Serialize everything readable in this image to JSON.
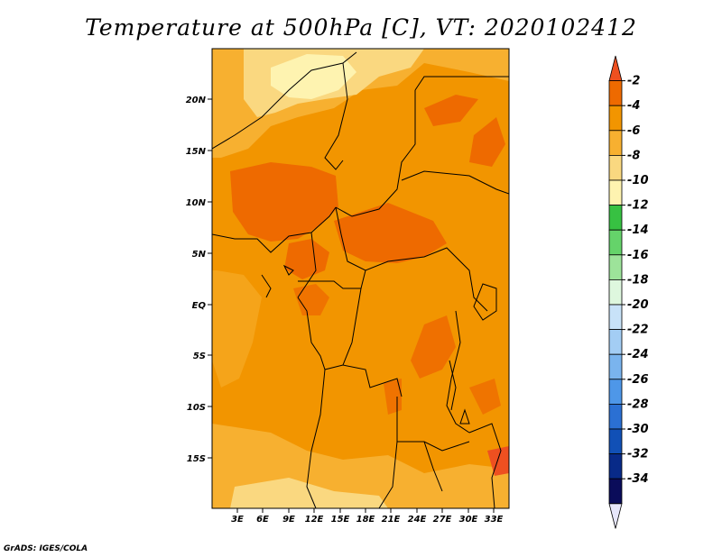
{
  "title": "Temperature at 500hPa [C], VT: 2020102412",
  "footer": "GrADS: IGES/COLA",
  "map": {
    "lat_labels": [
      "20N",
      "15N",
      "10N",
      "5N",
      "EQ",
      "5S",
      "10S",
      "15S"
    ],
    "lon_labels": [
      "3E",
      "6E",
      "9E",
      "12E",
      "15E",
      "18E",
      "21E",
      "24E",
      "27E",
      "30E",
      "33E"
    ]
  },
  "colorbar": {
    "labels": [
      "-2",
      "-4",
      "-6",
      "-8",
      "-10",
      "-12",
      "-14",
      "-16",
      "-18",
      "-20",
      "-22",
      "-24",
      "-26",
      "-28",
      "-30",
      "-32",
      "-34"
    ],
    "colors": [
      "#ee5020",
      "#ee6a00",
      "#f29500",
      "#f7b030",
      "#fad880",
      "#fef3b0",
      "#37c142",
      "#65d36a",
      "#9de39a",
      "#def7de",
      "#c8e2f8",
      "#a3cdf4",
      "#7ab4ee",
      "#4e97e8",
      "#2b70d3",
      "#1150b6",
      "#082a88",
      "#0a0c5a",
      "#e6e6fa"
    ]
  }
}
